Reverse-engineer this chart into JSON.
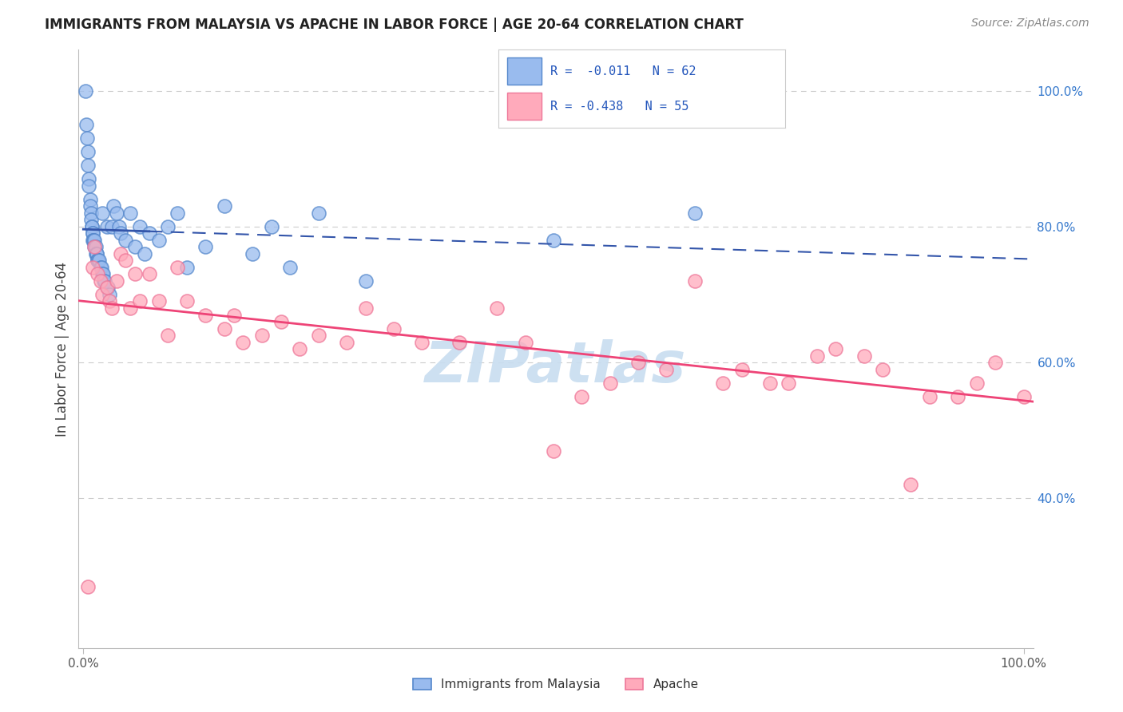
{
  "title": "IMMIGRANTS FROM MALAYSIA VS APACHE IN LABOR FORCE | AGE 20-64 CORRELATION CHART",
  "source": "Source: ZipAtlas.com",
  "ylabel": "In Labor Force | Age 20-64",
  "legend_labels": [
    "Immigrants from Malaysia",
    "Apache"
  ],
  "blue_R": "-0.011",
  "blue_N": "62",
  "pink_R": "-0.438",
  "pink_N": "55",
  "blue_face_color": "#99bbee",
  "blue_edge_color": "#5588cc",
  "pink_face_color": "#ffaabb",
  "pink_edge_color": "#ee7799",
  "blue_line_color": "#3355aa",
  "pink_line_color": "#ee4477",
  "background_color": "#ffffff",
  "grid_color": "#cccccc",
  "watermark_color": "#c8ddf0",
  "right_yticks": [
    0.4,
    0.6,
    0.8,
    1.0
  ],
  "right_ytick_labels": [
    "40.0%",
    "60.0%",
    "80.0%",
    "100.0%"
  ],
  "ylim_low": 0.18,
  "ylim_high": 1.06,
  "xlim_low": -0.005,
  "xlim_high": 1.01,
  "blue_x": [
    0.002,
    0.003,
    0.004,
    0.005,
    0.005,
    0.006,
    0.006,
    0.007,
    0.007,
    0.008,
    0.008,
    0.009,
    0.009,
    0.01,
    0.01,
    0.01,
    0.011,
    0.011,
    0.012,
    0.012,
    0.013,
    0.013,
    0.014,
    0.014,
    0.015,
    0.015,
    0.016,
    0.017,
    0.018,
    0.019,
    0.02,
    0.02,
    0.021,
    0.022,
    0.023,
    0.025,
    0.026,
    0.028,
    0.03,
    0.032,
    0.035,
    0.038,
    0.04,
    0.045,
    0.05,
    0.055,
    0.06,
    0.065,
    0.07,
    0.08,
    0.09,
    0.1,
    0.11,
    0.13,
    0.15,
    0.18,
    0.2,
    0.22,
    0.25,
    0.3,
    0.5,
    0.65
  ],
  "blue_y": [
    1.0,
    0.95,
    0.93,
    0.91,
    0.89,
    0.87,
    0.86,
    0.84,
    0.83,
    0.82,
    0.81,
    0.8,
    0.8,
    0.79,
    0.79,
    0.78,
    0.78,
    0.78,
    0.78,
    0.77,
    0.77,
    0.76,
    0.76,
    0.76,
    0.75,
    0.75,
    0.75,
    0.75,
    0.74,
    0.74,
    0.82,
    0.73,
    0.73,
    0.72,
    0.72,
    0.8,
    0.71,
    0.7,
    0.8,
    0.83,
    0.82,
    0.8,
    0.79,
    0.78,
    0.82,
    0.77,
    0.8,
    0.76,
    0.79,
    0.78,
    0.8,
    0.82,
    0.74,
    0.77,
    0.83,
    0.76,
    0.8,
    0.74,
    0.82,
    0.72,
    0.78,
    0.82
  ],
  "pink_x": [
    0.005,
    0.01,
    0.012,
    0.015,
    0.018,
    0.02,
    0.025,
    0.028,
    0.03,
    0.035,
    0.04,
    0.045,
    0.05,
    0.055,
    0.06,
    0.07,
    0.08,
    0.09,
    0.1,
    0.11,
    0.13,
    0.15,
    0.16,
    0.17,
    0.19,
    0.21,
    0.23,
    0.25,
    0.28,
    0.3,
    0.33,
    0.36,
    0.4,
    0.44,
    0.47,
    0.5,
    0.53,
    0.56,
    0.59,
    0.62,
    0.65,
    0.68,
    0.7,
    0.73,
    0.75,
    0.78,
    0.8,
    0.83,
    0.85,
    0.88,
    0.9,
    0.93,
    0.95,
    0.97,
    1.0
  ],
  "pink_y": [
    0.27,
    0.74,
    0.77,
    0.73,
    0.72,
    0.7,
    0.71,
    0.69,
    0.68,
    0.72,
    0.76,
    0.75,
    0.68,
    0.73,
    0.69,
    0.73,
    0.69,
    0.64,
    0.74,
    0.69,
    0.67,
    0.65,
    0.67,
    0.63,
    0.64,
    0.66,
    0.62,
    0.64,
    0.63,
    0.68,
    0.65,
    0.63,
    0.63,
    0.68,
    0.63,
    0.47,
    0.55,
    0.57,
    0.6,
    0.59,
    0.72,
    0.57,
    0.59,
    0.57,
    0.57,
    0.61,
    0.62,
    0.61,
    0.59,
    0.42,
    0.55,
    0.55,
    0.57,
    0.6,
    0.55
  ]
}
